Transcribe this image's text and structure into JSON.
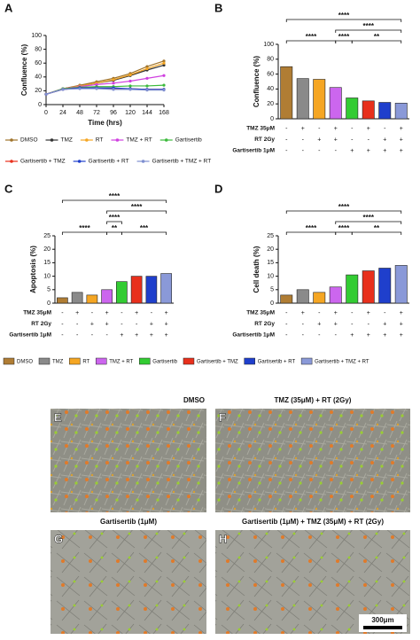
{
  "chart_data": [
    {
      "type": "line",
      "panel": "A",
      "xlabel": "Time (hrs)",
      "ylabel": "Confluence (%)",
      "x": [
        0,
        24,
        48,
        72,
        96,
        120,
        144,
        168
      ],
      "xlim": [
        0,
        168
      ],
      "xticks": [
        0,
        24,
        48,
        72,
        96,
        120,
        144,
        168
      ],
      "ylim": [
        0,
        100
      ],
      "yticks": [
        0,
        20,
        40,
        60,
        80,
        100
      ],
      "series": [
        {
          "name": "DMSO",
          "color": "#a0742c",
          "values": [
            15,
            23,
            28,
            33,
            38,
            45,
            55,
            63
          ]
        },
        {
          "name": "TMZ",
          "color": "#333333",
          "values": [
            15,
            23,
            27,
            31,
            35,
            42,
            50,
            57
          ]
        },
        {
          "name": "RT",
          "color": "#f5a623",
          "values": [
            15,
            23,
            27,
            31,
            36,
            43,
            52,
            60
          ]
        },
        {
          "name": "TMZ + RT",
          "color": "#d040e0",
          "values": [
            15,
            23,
            26,
            29,
            31,
            34,
            38,
            42
          ]
        },
        {
          "name": "Gartisertib",
          "color": "#3cba3c",
          "values": [
            15,
            23,
            25,
            26,
            26,
            27,
            27,
            28
          ]
        },
        {
          "name": "Gartisertib + TMZ",
          "color": "#e8301c",
          "values": [
            15,
            22,
            24,
            24,
            23,
            23,
            22,
            22
          ]
        },
        {
          "name": "Gartisertib + RT",
          "color": "#1f3fcc",
          "values": [
            15,
            22,
            24,
            24,
            24,
            23,
            22,
            22
          ]
        },
        {
          "name": "Gartisertib + TMZ + RT",
          "color": "#7f8fd0",
          "values": [
            15,
            22,
            23,
            23,
            22,
            22,
            21,
            21
          ]
        }
      ]
    },
    {
      "type": "bar",
      "panel": "B",
      "ylabel": "Confluence (%)",
      "categories": [
        null,
        null,
        null,
        null,
        null,
        null,
        null,
        null
      ],
      "values": [
        70,
        54,
        53,
        42,
        28,
        24,
        22,
        21
      ],
      "colors": [
        "#b07d34",
        "#8a8a8a",
        "#f5a623",
        "#cc66ee",
        "#33cc33",
        "#e8301c",
        "#1f3fcc",
        "#8a99d8"
      ],
      "ylim": [
        0,
        100
      ],
      "yticks": [
        0,
        20,
        40,
        60,
        80,
        100
      ],
      "treatments": [
        {
          "label": "TMZ 35μM",
          "signs": [
            "-",
            "+",
            "-",
            "+",
            "-",
            "+",
            "-",
            "+"
          ]
        },
        {
          "label": "RT 2Gy",
          "signs": [
            "-",
            "-",
            "+",
            "+",
            "-",
            "-",
            "+",
            "+"
          ]
        },
        {
          "label": "Gartisertib 1μM",
          "signs": [
            "-",
            "-",
            "-",
            "-",
            "+",
            "+",
            "+",
            "+"
          ]
        }
      ],
      "brackets": [
        {
          "label": "****",
          "span": [
            0,
            3
          ]
        },
        {
          "label": "****",
          "span": [
            3,
            4
          ]
        },
        {
          "label": "**",
          "span": [
            4,
            7
          ]
        },
        {
          "label": "****",
          "span": [
            3,
            7
          ]
        },
        {
          "label": "****",
          "span": [
            0,
            7
          ]
        }
      ]
    },
    {
      "type": "bar",
      "panel": "C",
      "ylabel": "Apoptosis (%)",
      "categories": [
        null,
        null,
        null,
        null,
        null,
        null,
        null,
        null
      ],
      "values": [
        2,
        4,
        3,
        5,
        8,
        10,
        10,
        11
      ],
      "colors": [
        "#b07d34",
        "#8a8a8a",
        "#f5a623",
        "#cc66ee",
        "#33cc33",
        "#e8301c",
        "#1f3fcc",
        "#8a99d8"
      ],
      "ylim": [
        0,
        25
      ],
      "yticks": [
        0,
        5,
        10,
        15,
        20,
        25
      ],
      "treatments": [
        {
          "label": "TMZ 35μM",
          "signs": [
            "-",
            "+",
            "-",
            "+",
            "-",
            "+",
            "-",
            "+"
          ]
        },
        {
          "label": "RT 2Gy",
          "signs": [
            "-",
            "-",
            "+",
            "+",
            "-",
            "-",
            "+",
            "+"
          ]
        },
        {
          "label": "Gartisertib 1μM",
          "signs": [
            "-",
            "-",
            "-",
            "-",
            "+",
            "+",
            "+",
            "+"
          ]
        }
      ],
      "brackets": [
        {
          "label": "****",
          "span": [
            0,
            3
          ]
        },
        {
          "label": "**",
          "span": [
            3,
            4
          ]
        },
        {
          "label": "****",
          "span": [
            3,
            4
          ]
        },
        {
          "label": "***",
          "span": [
            4,
            7
          ]
        },
        {
          "label": "****",
          "span": [
            3,
            7
          ]
        },
        {
          "label": "****",
          "span": [
            0,
            7
          ]
        }
      ]
    },
    {
      "type": "bar",
      "panel": "D",
      "ylabel": "Cell death (%)",
      "categories": [
        null,
        null,
        null,
        null,
        null,
        null,
        null,
        null
      ],
      "values": [
        3,
        5,
        4,
        6,
        10.5,
        12,
        13,
        14
      ],
      "colors": [
        "#b07d34",
        "#8a8a8a",
        "#f5a623",
        "#cc66ee",
        "#33cc33",
        "#e8301c",
        "#1f3fcc",
        "#8a99d8"
      ],
      "ylim": [
        0,
        25
      ],
      "yticks": [
        0,
        5,
        10,
        15,
        20,
        25
      ],
      "treatments": [
        {
          "label": "TMZ 35μM",
          "signs": [
            "-",
            "+",
            "-",
            "+",
            "-",
            "+",
            "-",
            "+"
          ]
        },
        {
          "label": "RT 2Gy",
          "signs": [
            "-",
            "-",
            "+",
            "+",
            "-",
            "-",
            "+",
            "+"
          ]
        },
        {
          "label": "Gartisertib 1μM",
          "signs": [
            "-",
            "-",
            "-",
            "-",
            "+",
            "+",
            "+",
            "+"
          ]
        }
      ],
      "brackets": [
        {
          "label": "****",
          "span": [
            0,
            3
          ]
        },
        {
          "label": "****",
          "span": [
            3,
            4
          ]
        },
        {
          "label": "**",
          "span": [
            4,
            7
          ]
        },
        {
          "label": "****",
          "span": [
            3,
            7
          ]
        },
        {
          "label": "****",
          "span": [
            0,
            7
          ]
        }
      ]
    }
  ],
  "images": [
    {
      "panel": "E",
      "title": "DMSO"
    },
    {
      "panel": "F",
      "title": "TMZ (35μM) + RT (2Gy)"
    },
    {
      "panel": "G",
      "title": "Gartisertib (1μM)"
    },
    {
      "panel": "H",
      "title": "Gartisertib (1μM) + TMZ (35μM) + RT (2Gy)"
    }
  ],
  "scale_bar": "300μm"
}
